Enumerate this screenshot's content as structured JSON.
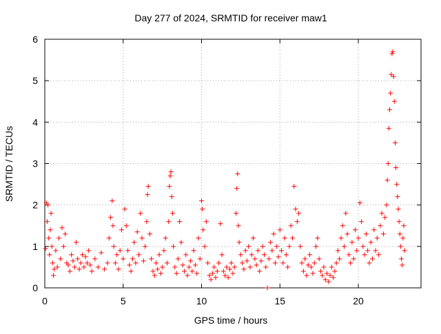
{
  "chart_data": {
    "type": "scatter",
    "title": "Day 277 of 2024, SRMTID for receiver maw1",
    "xlabel": "GPS time / hours",
    "ylabel": "SRMTID / TECUs",
    "xlim": [
      0,
      24
    ],
    "ylim": [
      0,
      6
    ],
    "xticks": [
      0,
      5,
      10,
      15,
      20
    ],
    "yticks": [
      0,
      1,
      2,
      3,
      4,
      5,
      6
    ],
    "grid": true,
    "marker": "plus",
    "color": "#ff0000",
    "series": [
      {
        "name": "SRMTID",
        "points": [
          [
            0.05,
            0.95
          ],
          [
            0.1,
            2.05
          ],
          [
            0.15,
            1.6
          ],
          [
            0.2,
            2.0
          ],
          [
            0.25,
            1.2
          ],
          [
            0.3,
            0.8
          ],
          [
            0.35,
            1.4
          ],
          [
            0.4,
            1.8
          ],
          [
            0.45,
            1.0
          ],
          [
            0.5,
            0.6
          ],
          [
            0.55,
            0.3
          ],
          [
            0.6,
            0.45
          ],
          [
            0.7,
            0.9
          ],
          [
            0.8,
            0.5
          ],
          [
            0.9,
            1.2
          ],
          [
            1.0,
            0.7
          ],
          [
            1.1,
            1.45
          ],
          [
            1.2,
            1.0
          ],
          [
            1.3,
            1.3
          ],
          [
            1.4,
            0.6
          ],
          [
            1.5,
            0.55
          ],
          [
            1.6,
            0.4
          ],
          [
            1.7,
            0.8
          ],
          [
            1.8,
            0.65
          ],
          [
            1.9,
            0.5
          ],
          [
            2.0,
            1.1
          ],
          [
            2.1,
            0.7
          ],
          [
            2.2,
            0.45
          ],
          [
            2.3,
            0.6
          ],
          [
            2.4,
            0.8
          ],
          [
            2.5,
            0.5
          ],
          [
            2.6,
            0.75
          ],
          [
            2.7,
            0.6
          ],
          [
            2.8,
            0.9
          ],
          [
            2.9,
            0.55
          ],
          [
            3.0,
            0.4
          ],
          [
            3.2,
            0.7
          ],
          [
            3.4,
            0.5
          ],
          [
            3.6,
            0.85
          ],
          [
            3.8,
            0.45
          ],
          [
            4.0,
            0.6
          ],
          [
            4.1,
            1.2
          ],
          [
            4.2,
            1.7
          ],
          [
            4.3,
            2.1
          ],
          [
            4.35,
            1.5
          ],
          [
            4.4,
            1.0
          ],
          [
            4.5,
            0.6
          ],
          [
            4.6,
            0.8
          ],
          [
            4.7,
            0.45
          ],
          [
            4.8,
            0.9
          ],
          [
            4.9,
            1.4
          ],
          [
            5.0,
            0.7
          ],
          [
            5.1,
            1.9
          ],
          [
            5.2,
            1.5
          ],
          [
            5.3,
            0.9
          ],
          [
            5.4,
            0.55
          ],
          [
            5.5,
            0.4
          ],
          [
            5.6,
            0.7
          ],
          [
            5.7,
            1.1
          ],
          [
            5.8,
            0.6
          ],
          [
            5.9,
            1.35
          ],
          [
            6.0,
            0.8
          ],
          [
            6.1,
            1.8
          ],
          [
            6.2,
            1.2
          ],
          [
            6.3,
            0.65
          ],
          [
            6.4,
            1.0
          ],
          [
            6.5,
            1.6
          ],
          [
            6.55,
            2.25
          ],
          [
            6.6,
            2.45
          ],
          [
            6.7,
            1.3
          ],
          [
            6.8,
            0.7
          ],
          [
            6.9,
            0.4
          ],
          [
            7.0,
            0.3
          ],
          [
            7.1,
            0.6
          ],
          [
            7.2,
            0.45
          ],
          [
            7.3,
            0.8
          ],
          [
            7.4,
            0.35
          ],
          [
            7.5,
            0.5
          ],
          [
            7.6,
            0.9
          ],
          [
            7.7,
            1.2
          ],
          [
            7.8,
            0.6
          ],
          [
            7.9,
            1.6
          ],
          [
            7.95,
            2.45
          ],
          [
            8.0,
            2.7
          ],
          [
            8.05,
            2.8
          ],
          [
            8.1,
            2.2
          ],
          [
            8.15,
            1.8
          ],
          [
            8.2,
            1.0
          ],
          [
            8.3,
            0.5
          ],
          [
            8.4,
            0.35
          ],
          [
            8.5,
            0.7
          ],
          [
            8.6,
            1.6
          ],
          [
            8.7,
            1.1
          ],
          [
            8.8,
            0.55
          ],
          [
            8.9,
            0.4
          ],
          [
            9.0,
            0.8
          ],
          [
            9.1,
            0.3
          ],
          [
            9.2,
            0.5
          ],
          [
            9.3,
            0.65
          ],
          [
            9.4,
            0.4
          ],
          [
            9.5,
            0.9
          ],
          [
            9.6,
            0.55
          ],
          [
            9.7,
            0.35
          ],
          [
            9.8,
            1.2
          ],
          [
            9.9,
            0.7
          ],
          [
            10.0,
            2.1
          ],
          [
            10.05,
            1.9
          ],
          [
            10.1,
            1.4
          ],
          [
            10.2,
            1.0
          ],
          [
            10.3,
            1.6
          ],
          [
            10.4,
            0.6
          ],
          [
            10.5,
            0.3
          ],
          [
            10.6,
            0.2
          ],
          [
            10.7,
            0.35
          ],
          [
            10.8,
            0.5
          ],
          [
            10.9,
            0.25
          ],
          [
            11.0,
            0.4
          ],
          [
            11.1,
            0.6
          ],
          [
            11.2,
            1.55
          ],
          [
            11.3,
            0.8
          ],
          [
            11.4,
            0.4
          ],
          [
            11.5,
            0.3
          ],
          [
            11.6,
            0.5
          ],
          [
            11.7,
            0.25
          ],
          [
            11.8,
            0.45
          ],
          [
            11.9,
            0.6
          ],
          [
            12.0,
            0.35
          ],
          [
            12.1,
            0.5
          ],
          [
            12.2,
            1.8
          ],
          [
            12.25,
            2.4
          ],
          [
            12.3,
            2.75
          ],
          [
            12.35,
            1.5
          ],
          [
            12.4,
            1.1
          ],
          [
            12.5,
            0.8
          ],
          [
            12.6,
            0.6
          ],
          [
            12.7,
            0.45
          ],
          [
            12.8,
            0.9
          ],
          [
            12.9,
            0.65
          ],
          [
            13.0,
            1.0
          ],
          [
            13.1,
            0.5
          ],
          [
            13.2,
            0.8
          ],
          [
            13.3,
            1.2
          ],
          [
            13.4,
            0.7
          ],
          [
            13.5,
            0.55
          ],
          [
            13.6,
            0.9
          ],
          [
            13.7,
            0.4
          ],
          [
            13.8,
            0.65
          ],
          [
            13.9,
            1.0
          ],
          [
            14.0,
            0.8
          ],
          [
            14.1,
            0.5
          ],
          [
            14.2,
            0.0
          ],
          [
            14.3,
            0.7
          ],
          [
            14.4,
            1.1
          ],
          [
            14.5,
            0.9
          ],
          [
            14.6,
            1.3
          ],
          [
            14.7,
            0.6
          ],
          [
            14.8,
            1.0
          ],
          [
            14.9,
            0.75
          ],
          [
            15.0,
            1.4
          ],
          [
            15.1,
            0.9
          ],
          [
            15.2,
            0.6
          ],
          [
            15.3,
            1.2
          ],
          [
            15.4,
            0.8
          ],
          [
            15.5,
            0.5
          ],
          [
            15.6,
            1.0
          ],
          [
            15.7,
            1.5
          ],
          [
            15.8,
            1.2
          ],
          [
            15.9,
            2.45
          ],
          [
            16.0,
            1.9
          ],
          [
            16.1,
            1.6
          ],
          [
            16.2,
            1.8
          ],
          [
            16.3,
            1.0
          ],
          [
            16.4,
            0.6
          ],
          [
            16.5,
            0.4
          ],
          [
            16.6,
            0.7
          ],
          [
            16.7,
            0.3
          ],
          [
            16.8,
            0.55
          ],
          [
            16.9,
            0.8
          ],
          [
            17.0,
            0.5
          ],
          [
            17.1,
            0.35
          ],
          [
            17.2,
            0.6
          ],
          [
            17.3,
            1.0
          ],
          [
            17.4,
            1.2
          ],
          [
            17.5,
            0.7
          ],
          [
            17.6,
            0.4
          ],
          [
            17.7,
            0.3
          ],
          [
            17.8,
            0.5
          ],
          [
            17.9,
            0.2
          ],
          [
            18.0,
            0.35
          ],
          [
            18.1,
            0.15
          ],
          [
            18.2,
            0.3
          ],
          [
            18.3,
            0.5
          ],
          [
            18.4,
            0.25
          ],
          [
            18.5,
            0.4
          ],
          [
            18.6,
            0.6
          ],
          [
            18.7,
            0.9
          ],
          [
            18.8,
            0.7
          ],
          [
            18.9,
            1.2
          ],
          [
            19.0,
            1.5
          ],
          [
            19.1,
            1.0
          ],
          [
            19.2,
            1.8
          ],
          [
            19.3,
            1.3
          ],
          [
            19.4,
            0.8
          ],
          [
            19.5,
            0.6
          ],
          [
            19.6,
            1.1
          ],
          [
            19.7,
            0.7
          ],
          [
            19.8,
            1.4
          ],
          [
            19.9,
            0.9
          ],
          [
            20.0,
            1.2
          ],
          [
            20.1,
            2.05
          ],
          [
            20.2,
            1.6
          ],
          [
            20.3,
            1.0
          ],
          [
            20.4,
            0.8
          ],
          [
            20.5,
            1.3
          ],
          [
            20.6,
            0.9
          ],
          [
            20.7,
            0.6
          ],
          [
            20.8,
            1.1
          ],
          [
            20.9,
            0.7
          ],
          [
            21.0,
            1.4
          ],
          [
            21.1,
            0.9
          ],
          [
            21.2,
            1.2
          ],
          [
            21.3,
            0.8
          ],
          [
            21.4,
            1.5
          ],
          [
            21.5,
            1.8
          ],
          [
            21.6,
            1.3
          ],
          [
            21.7,
            1.7
          ],
          [
            21.8,
            2.0
          ],
          [
            21.85,
            2.6
          ],
          [
            21.9,
            3.0
          ],
          [
            21.95,
            3.85
          ],
          [
            22.0,
            4.3
          ],
          [
            22.05,
            4.7
          ],
          [
            22.1,
            5.15
          ],
          [
            22.15,
            5.65
          ],
          [
            22.2,
            5.7
          ],
          [
            22.25,
            5.1
          ],
          [
            22.3,
            4.5
          ],
          [
            22.35,
            3.5
          ],
          [
            22.4,
            2.9
          ],
          [
            22.45,
            2.5
          ],
          [
            22.5,
            2.2
          ],
          [
            22.55,
            1.9
          ],
          [
            22.6,
            1.6
          ],
          [
            22.65,
            1.3
          ],
          [
            22.7,
            1.0
          ],
          [
            22.75,
            0.7
          ],
          [
            22.8,
            0.55
          ],
          [
            22.85,
            1.2
          ],
          [
            22.9,
            1.5
          ],
          [
            22.95,
            0.9
          ]
        ]
      }
    ]
  }
}
